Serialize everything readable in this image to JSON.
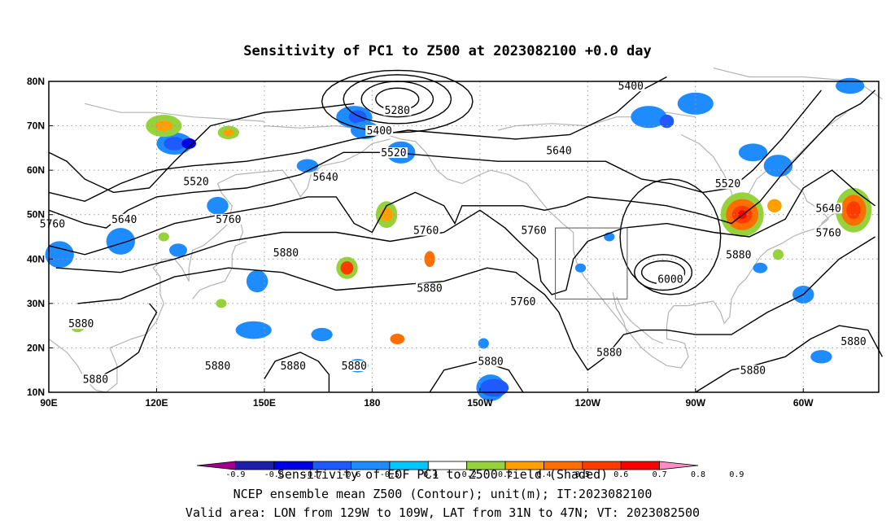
{
  "chart_data": {
    "type": "heatmap",
    "title": "Sensitivity of PC1 to Z500 at 2023082100 +0.0 day",
    "x_ticks": [
      "90E",
      "120E",
      "150E",
      "180",
      "150W",
      "120W",
      "90W",
      "60W"
    ],
    "y_ticks": [
      "10N",
      "20N",
      "30N",
      "40N",
      "50N",
      "60N",
      "70N",
      "80N"
    ],
    "x_tick_lon": [
      90,
      120,
      150,
      180,
      210,
      240,
      270,
      300
    ],
    "y_tick_lat": [
      10,
      20,
      30,
      40,
      50,
      60,
      70,
      80
    ],
    "xlim": [
      90,
      321
    ],
    "ylim": [
      10,
      80
    ],
    "grid": "dotted",
    "colorbar": {
      "colors": [
        "#a0008c",
        "#1e1eaa",
        "#0000e6",
        "#1e5aff",
        "#1e8cff",
        "#00c8ff",
        "#ffffff",
        "#96d23c",
        "#ffa000",
        "#ff6e00",
        "#ff3c00",
        "#ff0000",
        "#ff8cc8"
      ],
      "labels": [
        "-0.9",
        "-0.8",
        "-0.7",
        "-0.6",
        "-0.5",
        "-0.4",
        "-0.2",
        "0.2",
        "0.4",
        "0.5",
        "0.6",
        "0.7",
        "0.8",
        "0.9"
      ]
    },
    "contour_labels": [
      {
        "text": "5280",
        "lon": 187,
        "lat": 73
      },
      {
        "text": "5400",
        "lon": 182,
        "lat": 68.5
      },
      {
        "text": "5520",
        "lon": 186,
        "lat": 63.5
      },
      {
        "text": "5400",
        "lon": 252,
        "lat": 78.5
      },
      {
        "text": "5640",
        "lon": 232,
        "lat": 64
      },
      {
        "text": "5520",
        "lon": 279,
        "lat": 56.5
      },
      {
        "text": "5520",
        "lon": 131,
        "lat": 57
      },
      {
        "text": "5640",
        "lon": 167,
        "lat": 58
      },
      {
        "text": "5640",
        "lon": 111,
        "lat": 48.5
      },
      {
        "text": "5760",
        "lon": 140,
        "lat": 48.5
      },
      {
        "text": "5760",
        "lon": 91,
        "lat": 47.5
      },
      {
        "text": "5760",
        "lon": 195,
        "lat": 46
      },
      {
        "text": "5760",
        "lon": 225,
        "lat": 46
      },
      {
        "text": "5640",
        "lon": 307,
        "lat": 51
      },
      {
        "text": "5760",
        "lon": 307,
        "lat": 45.5
      },
      {
        "text": "5880",
        "lon": 282,
        "lat": 40.5
      },
      {
        "text": "5880",
        "lon": 156,
        "lat": 41
      },
      {
        "text": "5880",
        "lon": 196,
        "lat": 33
      },
      {
        "text": "6000",
        "lon": 263,
        "lat": 35
      },
      {
        "text": "5760",
        "lon": 222,
        "lat": 30
      },
      {
        "text": "5880",
        "lon": 99,
        "lat": 25
      },
      {
        "text": "5880",
        "lon": 246,
        "lat": 18.5
      },
      {
        "text": "5880",
        "lon": 314,
        "lat": 21
      },
      {
        "text": "5880",
        "lon": 103,
        "lat": 12.5
      },
      {
        "text": "5880",
        "lon": 137,
        "lat": 15.5
      },
      {
        "text": "5880",
        "lon": 158,
        "lat": 15.5
      },
      {
        "text": "5880",
        "lon": 175,
        "lat": 15.5
      },
      {
        "text": "5880",
        "lon": 213,
        "lat": 16.5
      },
      {
        "text": "5880",
        "lon": 286,
        "lat": 14.5
      }
    ],
    "valid_box": {
      "lon_min": 231,
      "lon_max": 251,
      "lat_min": 31,
      "lat_max": 47
    },
    "caption": [
      "Sensitivity of EOF PC1 to Z500 field (Shaded)",
      "NCEP ensemble mean Z500 (Contour); unit(m); IT:2023082100",
      "Valid area: LON from 129W to 109W, LAT from 31N to 47N; VT: 2023082500"
    ]
  }
}
